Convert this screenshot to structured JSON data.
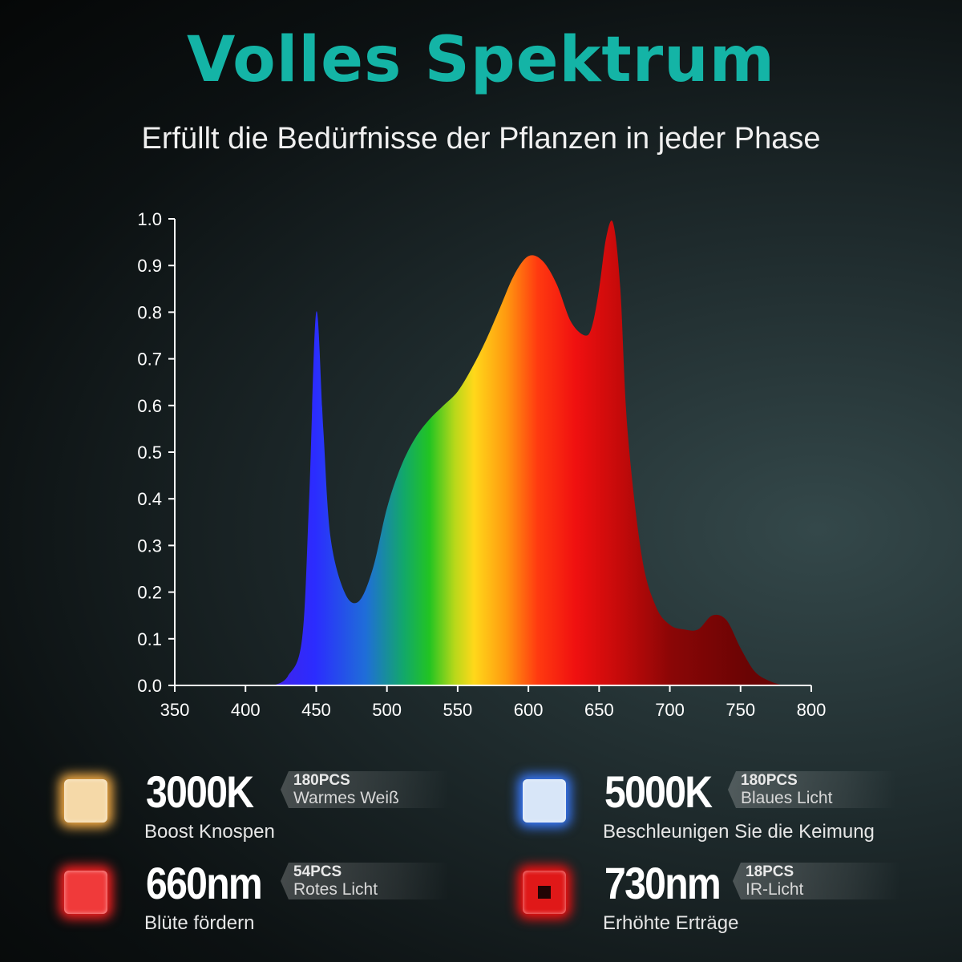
{
  "header": {
    "title": "Volles Spektrum",
    "subtitle": "Erfüllt die Bedürfnisse der Pflanzen in jeder Phase"
  },
  "chart_data": {
    "type": "area",
    "title": "",
    "xlabel": "",
    "ylabel": "",
    "xlim": [
      350,
      800
    ],
    "ylim": [
      0,
      1.0
    ],
    "x_ticks": [
      "350",
      "400",
      "450",
      "500",
      "550",
      "600",
      "650",
      "700",
      "750",
      "800"
    ],
    "y_ticks": [
      "0.0",
      "0.1",
      "0.2",
      "0.3",
      "0.4",
      "0.5",
      "0.6",
      "0.7",
      "0.8",
      "0.9",
      "1.0"
    ],
    "grid": false,
    "fill": "spectral rainbow gradient (violet to deep red)",
    "x": [
      420,
      430,
      440,
      445,
      450,
      455,
      460,
      470,
      480,
      490,
      500,
      510,
      520,
      530,
      540,
      550,
      560,
      570,
      580,
      590,
      600,
      610,
      620,
      630,
      640,
      645,
      650,
      655,
      660,
      665,
      670,
      680,
      690,
      700,
      710,
      720,
      730,
      740,
      750,
      760,
      770,
      780
    ],
    "y": [
      0.0,
      0.02,
      0.1,
      0.4,
      0.8,
      0.55,
      0.32,
      0.2,
      0.18,
      0.25,
      0.38,
      0.47,
      0.53,
      0.57,
      0.6,
      0.63,
      0.68,
      0.74,
      0.81,
      0.88,
      0.92,
      0.91,
      0.86,
      0.78,
      0.75,
      0.77,
      0.85,
      0.96,
      0.99,
      0.85,
      0.55,
      0.28,
      0.17,
      0.13,
      0.12,
      0.12,
      0.15,
      0.14,
      0.08,
      0.03,
      0.01,
      0.0
    ]
  },
  "legend": [
    {
      "value": "3000K",
      "pcs": "180PCS",
      "desc": "Warmes Weiß",
      "caption": "Boost Knospen",
      "color": "#f5d9a8",
      "glow": "#ffb347",
      "icon": "warm-white-led-icon"
    },
    {
      "value": "5000K",
      "pcs": "180PCS",
      "desc": "Blaues Licht",
      "caption": "Beschleunigen Sie die Keimung",
      "color": "#d8e6f8",
      "glow": "#3a7bff",
      "icon": "cool-white-led-icon"
    },
    {
      "value": "660nm",
      "pcs": "54PCS",
      "desc": "Rotes Licht",
      "caption": "Blüte fördern",
      "color": "#f03a3a",
      "glow": "#ff2020",
      "icon": "red-led-icon"
    },
    {
      "value": "730nm",
      "pcs": "18PCS",
      "desc": "IR-Licht",
      "caption": "Erhöhte Erträge",
      "color": "#e01818",
      "glow": "#ff1010",
      "icon": "ir-led-icon"
    }
  ]
}
